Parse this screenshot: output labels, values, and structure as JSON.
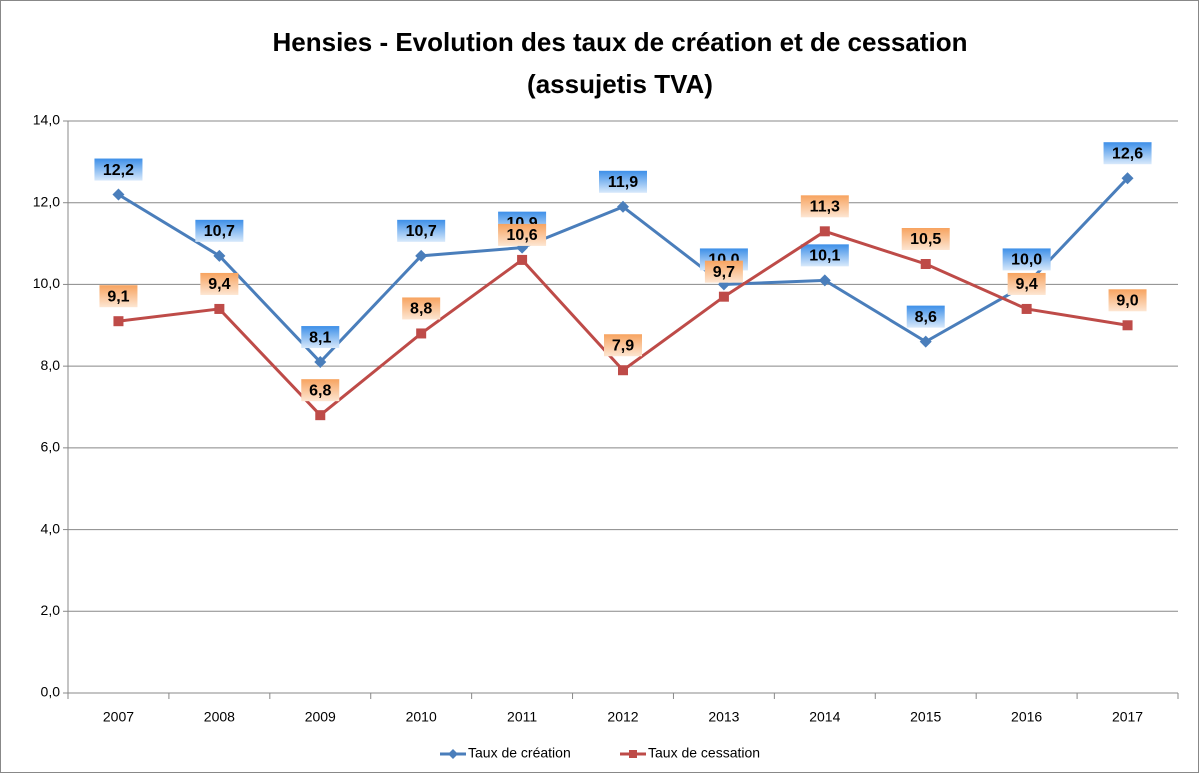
{
  "chart_data": {
    "type": "line",
    "title": [
      "Hensies - Evolution des taux de création et de cessation",
      "(assujetis TVA)"
    ],
    "categories": [
      "2007",
      "2008",
      "2009",
      "2010",
      "2011",
      "2012",
      "2013",
      "2014",
      "2015",
      "2016",
      "2017"
    ],
    "series": [
      {
        "name": "Taux de création",
        "color": "#4a7ebb",
        "values": [
          12.2,
          10.7,
          8.1,
          10.7,
          10.9,
          11.9,
          10.0,
          10.1,
          8.6,
          10.0,
          12.6
        ],
        "value_labels": [
          "12,2",
          "10,7",
          "8,1",
          "10,7",
          "10,9",
          "11,9",
          "10,0",
          "10,1",
          "8,6",
          "10,0",
          "12,6"
        ]
      },
      {
        "name": "Taux de cessation",
        "color": "#be4b48",
        "values": [
          9.1,
          9.4,
          6.8,
          8.8,
          10.6,
          7.9,
          9.7,
          11.3,
          10.5,
          9.4,
          9.0
        ],
        "value_labels": [
          "9,1",
          "9,4",
          "6,8",
          "8,8",
          "10,6",
          "7,9",
          "9,7",
          "11,3",
          "10,5",
          "9,4",
          "9,0"
        ]
      }
    ],
    "ylim": [
      0,
      14
    ],
    "yticks": [
      {
        "value": 0,
        "label": "0,0"
      },
      {
        "value": 2,
        "label": "2,0"
      },
      {
        "value": 4,
        "label": "4,0"
      },
      {
        "value": 6,
        "label": "6,0"
      },
      {
        "value": 8,
        "label": "8,0"
      },
      {
        "value": 10,
        "label": "10,0"
      },
      {
        "value": 12,
        "label": "12,0"
      },
      {
        "value": 14,
        "label": "14,0"
      }
    ],
    "grid": true,
    "legend": "bottom"
  }
}
